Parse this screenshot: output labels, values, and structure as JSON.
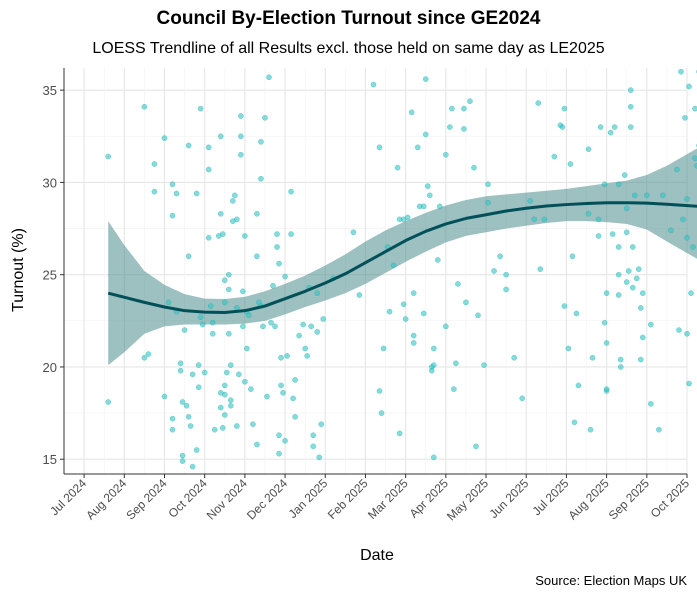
{
  "chart_data": {
    "type": "scatter",
    "title": "Council By-Election Turnout since GE2024",
    "subtitle": "LOESS Trendline of all Results excl. those held on same day as LE2025",
    "xlabel": "Date",
    "ylabel": "Turnout (%)",
    "caption": "Source: Election Maps UK",
    "ylim": [
      14.2,
      36.2
    ],
    "yticks": [
      15,
      20,
      25,
      30,
      35
    ],
    "xlim": [
      -0.5,
      15.0
    ],
    "xticks": [
      "Jul 2024",
      "Aug 2024",
      "Sep 2024",
      "Oct 2024",
      "Nov 2024",
      "Dec 2024",
      "Jan 2025",
      "Feb 2025",
      "Mar 2025",
      "Apr 2025",
      "May 2025",
      "Jun 2025",
      "Jul 2025",
      "Aug 2025",
      "Sep 2025",
      "Oct 2025"
    ],
    "grid": true,
    "colors": {
      "points": "#2ec4c4",
      "trend_line": "#00505a",
      "band": "#4d8c8c",
      "grid": "#e6e6e6"
    },
    "points": [
      [
        0.6,
        31.4
      ],
      [
        0.6,
        18.1
      ],
      [
        1.5,
        34.1
      ],
      [
        1.5,
        20.5
      ],
      [
        1.6,
        20.7
      ],
      [
        1.75,
        31.0
      ],
      [
        1.75,
        29.5
      ],
      [
        2.0,
        32.4
      ],
      [
        2.0,
        18.4
      ],
      [
        2.1,
        23.5
      ],
      [
        2.2,
        29.9
      ],
      [
        2.2,
        28.2
      ],
      [
        2.2,
        17.2
      ],
      [
        2.2,
        16.6
      ],
      [
        2.3,
        23.0
      ],
      [
        2.3,
        29.4
      ],
      [
        2.4,
        20.2
      ],
      [
        2.4,
        19.8
      ],
      [
        2.45,
        15.2
      ],
      [
        2.45,
        14.9
      ],
      [
        2.45,
        18.1
      ],
      [
        2.5,
        22.0
      ],
      [
        2.55,
        17.9
      ],
      [
        2.6,
        32.0
      ],
      [
        2.6,
        26.0
      ],
      [
        2.6,
        17.3
      ],
      [
        2.65,
        16.8
      ],
      [
        2.7,
        19.6
      ],
      [
        2.7,
        14.6
      ],
      [
        2.8,
        15.5
      ],
      [
        2.8,
        29.4
      ],
      [
        2.85,
        20.1
      ],
      [
        2.85,
        18.9
      ],
      [
        2.9,
        34.0
      ],
      [
        2.9,
        22.7
      ],
      [
        2.95,
        22.3
      ],
      [
        3.0,
        19.7
      ],
      [
        3.1,
        31.9
      ],
      [
        3.1,
        30.7
      ],
      [
        3.1,
        27.0
      ],
      [
        3.15,
        23.3
      ],
      [
        3.2,
        22.4
      ],
      [
        3.2,
        21.8
      ],
      [
        3.25,
        16.6
      ],
      [
        3.35,
        27.1
      ],
      [
        3.4,
        28.3
      ],
      [
        3.4,
        32.5
      ],
      [
        3.4,
        17.8
      ],
      [
        3.4,
        18.6
      ],
      [
        3.45,
        16.7
      ],
      [
        3.45,
        27.2
      ],
      [
        3.5,
        23.5
      ],
      [
        3.5,
        24.7
      ],
      [
        3.5,
        19.0
      ],
      [
        3.5,
        18.5
      ],
      [
        3.5,
        17.4
      ],
      [
        3.55,
        19.7
      ],
      [
        3.6,
        25.0
      ],
      [
        3.6,
        24.2
      ],
      [
        3.6,
        21.8
      ],
      [
        3.65,
        20.1
      ],
      [
        3.65,
        18.2
      ],
      [
        3.65,
        17.9
      ],
      [
        3.7,
        29.0
      ],
      [
        3.7,
        27.9
      ],
      [
        3.75,
        29.3
      ],
      [
        3.8,
        28.0
      ],
      [
        3.8,
        23.2
      ],
      [
        3.8,
        16.8
      ],
      [
        3.85,
        19.6
      ],
      [
        3.9,
        33.6
      ],
      [
        3.9,
        31.5
      ],
      [
        3.9,
        32.5
      ],
      [
        3.95,
        24.1
      ],
      [
        3.95,
        22.2
      ],
      [
        4.0,
        27.1
      ],
      [
        4.0,
        19.2
      ],
      [
        4.05,
        21.0
      ],
      [
        4.05,
        23.0
      ],
      [
        4.1,
        22.8
      ],
      [
        4.15,
        18.8
      ],
      [
        4.2,
        16.9
      ],
      [
        4.3,
        15.8
      ],
      [
        4.3,
        28.3
      ],
      [
        4.3,
        26.0
      ],
      [
        4.35,
        23.5
      ],
      [
        4.4,
        32.2
      ],
      [
        4.4,
        30.2
      ],
      [
        4.4,
        23.3
      ],
      [
        4.45,
        22.2
      ],
      [
        4.5,
        33.5
      ],
      [
        4.55,
        18.4
      ],
      [
        4.6,
        35.7
      ],
      [
        4.65,
        22.4
      ],
      [
        4.7,
        24.4
      ],
      [
        4.75,
        22.2
      ],
      [
        4.8,
        27.2
      ],
      [
        4.8,
        26.5
      ],
      [
        4.85,
        15.3
      ],
      [
        4.85,
        16.3
      ],
      [
        4.85,
        25.6
      ],
      [
        4.9,
        20.5
      ],
      [
        4.9,
        19.0
      ],
      [
        4.95,
        18.6
      ],
      [
        5.0,
        24.9
      ],
      [
        5.0,
        16.0
      ],
      [
        5.05,
        20.6
      ],
      [
        5.15,
        29.5
      ],
      [
        5.15,
        27.2
      ],
      [
        5.2,
        18.3
      ],
      [
        5.25,
        17.3
      ],
      [
        5.25,
        19.3
      ],
      [
        5.35,
        21.7
      ],
      [
        5.45,
        22.3
      ],
      [
        5.5,
        21.0
      ],
      [
        5.55,
        20.6
      ],
      [
        5.6,
        24.3
      ],
      [
        5.65,
        22.2
      ],
      [
        5.7,
        16.3
      ],
      [
        5.7,
        15.7
      ],
      [
        5.8,
        21.9
      ],
      [
        5.8,
        24.0
      ],
      [
        5.85,
        15.1
      ],
      [
        5.9,
        16.9
      ],
      [
        5.95,
        22.6
      ],
      [
        6.2,
        24.8
      ],
      [
        6.7,
        27.3
      ],
      [
        6.85,
        23.9
      ],
      [
        7.2,
        35.3
      ],
      [
        7.35,
        31.9
      ],
      [
        7.35,
        18.7
      ],
      [
        7.4,
        17.5
      ],
      [
        7.45,
        21.0
      ],
      [
        7.55,
        26.5
      ],
      [
        7.6,
        23.0
      ],
      [
        7.7,
        25.5
      ],
      [
        7.8,
        30.8
      ],
      [
        7.85,
        28.0
      ],
      [
        7.85,
        16.4
      ],
      [
        7.95,
        28.0
      ],
      [
        7.95,
        23.4
      ],
      [
        8.0,
        22.6
      ],
      [
        8.05,
        28.1
      ],
      [
        8.15,
        33.8
      ],
      [
        8.2,
        24.0
      ],
      [
        8.2,
        21.7
      ],
      [
        8.2,
        21.3
      ],
      [
        8.3,
        31.9
      ],
      [
        8.35,
        28.7
      ],
      [
        8.45,
        28.7
      ],
      [
        8.45,
        22.9
      ],
      [
        8.5,
        35.6
      ],
      [
        8.5,
        32.6
      ],
      [
        8.55,
        29.8
      ],
      [
        8.6,
        29.3
      ],
      [
        8.65,
        20.0
      ],
      [
        8.65,
        19.8
      ],
      [
        8.7,
        20.1
      ],
      [
        8.7,
        21.0
      ],
      [
        8.7,
        15.1
      ],
      [
        8.8,
        25.8
      ],
      [
        8.85,
        28.7
      ],
      [
        9.0,
        31.5
      ],
      [
        9.0,
        22.2
      ],
      [
        9.1,
        33.0
      ],
      [
        9.15,
        34.0
      ],
      [
        9.2,
        18.8
      ],
      [
        9.25,
        20.2
      ],
      [
        9.3,
        24.5
      ],
      [
        9.45,
        32.9
      ],
      [
        9.45,
        34.0
      ],
      [
        9.5,
        23.5
      ],
      [
        9.6,
        34.4
      ],
      [
        9.7,
        30.8
      ],
      [
        9.75,
        15.7
      ],
      [
        9.8,
        22.8
      ],
      [
        9.95,
        20.1
      ],
      [
        10.05,
        29.9
      ],
      [
        10.05,
        28.9
      ],
      [
        10.2,
        25.2
      ],
      [
        10.35,
        26.0
      ],
      [
        10.5,
        25.0
      ],
      [
        10.5,
        24.2
      ],
      [
        10.7,
        20.5
      ],
      [
        10.9,
        18.3
      ],
      [
        11.1,
        29.0
      ],
      [
        11.2,
        28.0
      ],
      [
        11.3,
        34.3
      ],
      [
        11.35,
        25.3
      ],
      [
        11.45,
        28.0
      ],
      [
        11.7,
        31.4
      ],
      [
        11.85,
        33.1
      ],
      [
        11.9,
        33.0
      ],
      [
        11.95,
        34.0
      ],
      [
        11.95,
        23.3
      ],
      [
        12.05,
        21.0
      ],
      [
        12.1,
        31.0
      ],
      [
        12.15,
        26.0
      ],
      [
        12.2,
        17.0
      ],
      [
        12.25,
        22.9
      ],
      [
        12.3,
        19.0
      ],
      [
        12.55,
        28.3
      ],
      [
        12.55,
        31.8
      ],
      [
        12.6,
        16.6
      ],
      [
        12.65,
        20.5
      ],
      [
        12.8,
        28.0
      ],
      [
        12.8,
        27.1
      ],
      [
        12.85,
        33.0
      ],
      [
        12.95,
        22.4
      ],
      [
        12.95,
        29.9
      ],
      [
        13.0,
        24.0
      ],
      [
        13.0,
        21.3
      ],
      [
        13.0,
        18.7
      ],
      [
        13.0,
        18.8
      ],
      [
        13.1,
        32.7
      ],
      [
        13.15,
        27.2
      ],
      [
        13.2,
        33.0
      ],
      [
        13.3,
        29.9
      ],
      [
        13.3,
        23.9
      ],
      [
        13.3,
        26.5
      ],
      [
        13.3,
        25.0
      ],
      [
        13.35,
        20.4
      ],
      [
        13.35,
        20.0
      ],
      [
        13.45,
        30.4
      ],
      [
        13.5,
        28.6
      ],
      [
        13.5,
        27.3
      ],
      [
        13.5,
        24.6
      ],
      [
        13.55,
        25.2
      ],
      [
        13.6,
        34.1
      ],
      [
        13.6,
        33.0
      ],
      [
        13.6,
        35.0
      ],
      [
        13.65,
        24.3
      ],
      [
        13.65,
        26.5
      ],
      [
        13.7,
        29.3
      ],
      [
        13.75,
        24.8
      ],
      [
        13.8,
        25.3
      ],
      [
        13.85,
        20.4
      ],
      [
        13.85,
        23.2
      ],
      [
        13.9,
        21.6
      ],
      [
        13.9,
        24.0
      ],
      [
        14.0,
        29.3
      ],
      [
        14.1,
        22.3
      ],
      [
        14.1,
        18.0
      ],
      [
        14.3,
        16.6
      ],
      [
        14.4,
        29.3
      ],
      [
        14.6,
        27.4
      ],
      [
        14.75,
        30.7
      ],
      [
        14.8,
        22.0
      ],
      [
        14.85,
        36.0
      ],
      [
        14.9,
        28.0
      ],
      [
        14.95,
        33.5
      ],
      [
        15.0,
        29.1
      ],
      [
        15.0,
        27.0
      ],
      [
        15.05,
        35.2
      ],
      [
        15.0,
        21.8
      ],
      [
        15.05,
        19.1
      ],
      [
        15.1,
        24.0
      ],
      [
        15.15,
        26.5
      ],
      [
        15.2,
        31.3
      ],
      [
        15.2,
        34.0
      ],
      [
        15.25,
        30.9
      ],
      [
        15.3,
        36.0
      ],
      [
        15.3,
        32.0
      ],
      [
        15.35,
        30.0
      ],
      [
        15.35,
        28.0
      ]
    ],
    "trend": [
      [
        0.6,
        24.0
      ],
      [
        1.5,
        23.5
      ],
      [
        2.0,
        23.25
      ],
      [
        2.5,
        23.05
      ],
      [
        3.0,
        22.97
      ],
      [
        3.5,
        22.95
      ],
      [
        4.0,
        23.05
      ],
      [
        4.5,
        23.3
      ],
      [
        5.0,
        23.7
      ],
      [
        5.5,
        24.1
      ],
      [
        6.0,
        24.55
      ],
      [
        6.5,
        25.05
      ],
      [
        7.0,
        25.65
      ],
      [
        7.5,
        26.25
      ],
      [
        8.0,
        26.85
      ],
      [
        8.5,
        27.35
      ],
      [
        9.0,
        27.75
      ],
      [
        9.5,
        28.05
      ],
      [
        10.0,
        28.25
      ],
      [
        10.5,
        28.45
      ],
      [
        11.0,
        28.6
      ],
      [
        11.5,
        28.72
      ],
      [
        12.0,
        28.8
      ],
      [
        12.5,
        28.86
      ],
      [
        13.0,
        28.9
      ],
      [
        13.5,
        28.9
      ],
      [
        14.0,
        28.88
      ],
      [
        14.5,
        28.82
      ],
      [
        15.3,
        28.7
      ]
    ],
    "band_upper": [
      [
        0.6,
        27.9
      ],
      [
        1.0,
        26.6
      ],
      [
        1.5,
        25.2
      ],
      [
        2.0,
        24.45
      ],
      [
        2.5,
        23.95
      ],
      [
        3.0,
        23.7
      ],
      [
        3.5,
        23.68
      ],
      [
        4.0,
        23.8
      ],
      [
        4.5,
        24.1
      ],
      [
        5.0,
        24.5
      ],
      [
        5.5,
        24.95
      ],
      [
        6.0,
        25.5
      ],
      [
        6.5,
        26.1
      ],
      [
        7.0,
        26.8
      ],
      [
        7.5,
        27.4
      ],
      [
        8.0,
        27.9
      ],
      [
        8.5,
        28.35
      ],
      [
        9.0,
        28.75
      ],
      [
        9.5,
        29.05
      ],
      [
        10.0,
        29.25
      ],
      [
        10.5,
        29.35
      ],
      [
        11.0,
        29.45
      ],
      [
        11.5,
        29.55
      ],
      [
        12.0,
        29.65
      ],
      [
        12.5,
        29.8
      ],
      [
        13.0,
        29.95
      ],
      [
        13.5,
        30.1
      ],
      [
        14.0,
        30.4
      ],
      [
        14.5,
        30.9
      ],
      [
        15.3,
        31.9
      ]
    ],
    "band_lower": [
      [
        0.6,
        20.1
      ],
      [
        1.0,
        20.8
      ],
      [
        1.5,
        21.8
      ],
      [
        2.0,
        22.2
      ],
      [
        2.5,
        22.3
      ],
      [
        3.0,
        22.3
      ],
      [
        3.5,
        22.3
      ],
      [
        4.0,
        22.35
      ],
      [
        4.5,
        22.5
      ],
      [
        5.0,
        22.85
      ],
      [
        5.5,
        23.25
      ],
      [
        6.0,
        23.6
      ],
      [
        6.5,
        24.0
      ],
      [
        7.0,
        24.5
      ],
      [
        7.5,
        25.1
      ],
      [
        8.0,
        25.7
      ],
      [
        8.5,
        26.25
      ],
      [
        9.0,
        26.75
      ],
      [
        9.5,
        27.1
      ],
      [
        10.0,
        27.3
      ],
      [
        10.5,
        27.5
      ],
      [
        11.0,
        27.65
      ],
      [
        11.5,
        27.8
      ],
      [
        12.0,
        27.9
      ],
      [
        12.5,
        27.9
      ],
      [
        13.0,
        27.85
      ],
      [
        13.5,
        27.75
      ],
      [
        14.0,
        27.45
      ],
      [
        14.5,
        26.8
      ],
      [
        15.3,
        25.8
      ]
    ]
  }
}
